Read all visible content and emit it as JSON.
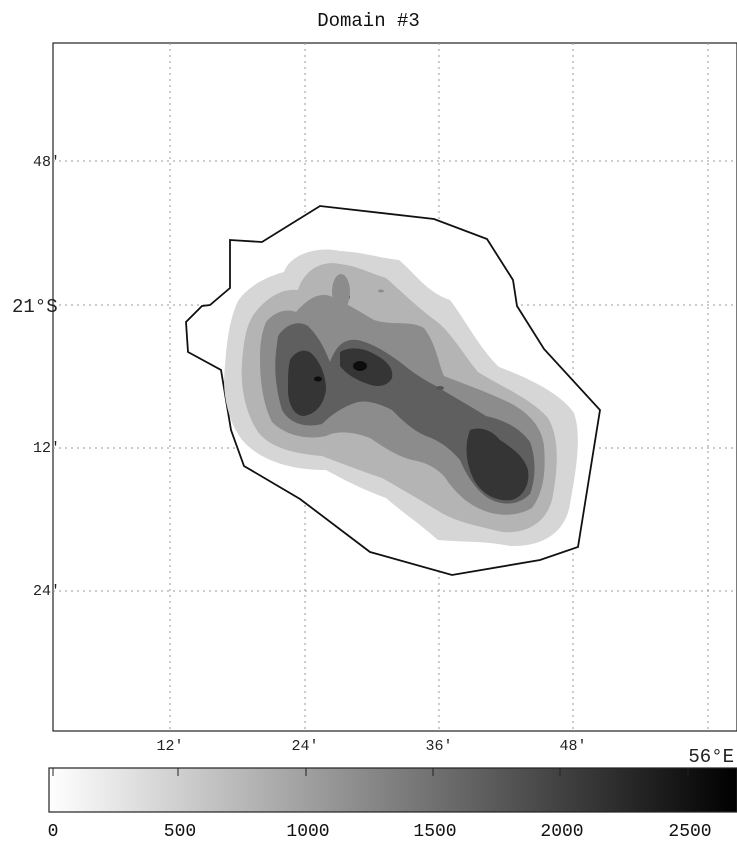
{
  "title": "Domain #3",
  "map": {
    "lat_ticks": [
      {
        "label": "48′"
      },
      {
        "label": "21°S",
        "degree": true
      },
      {
        "label": "12′"
      },
      {
        "label": "24′"
      }
    ],
    "lon_ticks": [
      {
        "label": "12′"
      },
      {
        "label": "24′"
      },
      {
        "label": "36′"
      },
      {
        "label": "48′"
      }
    ],
    "lon_degree_label": "56°E",
    "gridlines": "dotted",
    "coastline_color": "#111111"
  },
  "colorbar": {
    "ticks": [
      "0",
      "500",
      "1000",
      "1500",
      "2000",
      "2500"
    ],
    "min": 0,
    "max": 2700,
    "palette": "grayscale white-to-black"
  },
  "contour_levels": [
    {
      "value": 300,
      "color": "#d6d6d6"
    },
    {
      "value": 700,
      "color": "#b4b4b4"
    },
    {
      "value": 1200,
      "color": "#8c8c8c"
    },
    {
      "value": 1700,
      "color": "#5f5f5f"
    },
    {
      "value": 2200,
      "color": "#353535"
    },
    {
      "value": 2600,
      "color": "#0d0d0d"
    }
  ]
}
